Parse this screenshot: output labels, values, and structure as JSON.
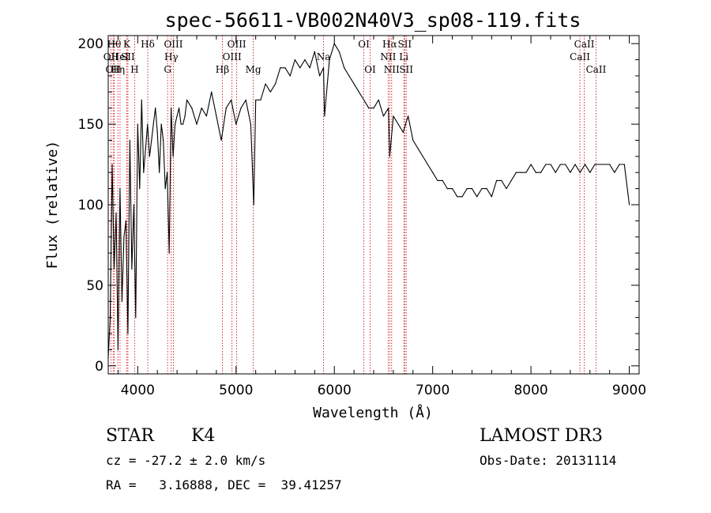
{
  "chart_data": {
    "type": "line",
    "title": "spec-56611-VB002N40V3_sp08-119.fits",
    "xlabel": "Wavelength (Å)",
    "ylabel": "Flux (relative)",
    "xlim": [
      3700,
      9100
    ],
    "ylim": [
      -5,
      205
    ],
    "xticks": [
      4000,
      5000,
      6000,
      7000,
      8000,
      9000
    ],
    "yticks": [
      0,
      50,
      100,
      150,
      200
    ],
    "series": [
      {
        "name": "flux",
        "x": [
          3700,
          3720,
          3740,
          3760,
          3780,
          3800,
          3820,
          3840,
          3860,
          3880,
          3900,
          3920,
          3940,
          3960,
          3980,
          4000,
          4020,
          4040,
          4060,
          4080,
          4100,
          4120,
          4140,
          4160,
          4180,
          4200,
          4220,
          4240,
          4260,
          4280,
          4300,
          4320,
          4340,
          4360,
          4380,
          4400,
          4420,
          4440,
          4460,
          4480,
          4500,
          4550,
          4600,
          4650,
          4700,
          4750,
          4800,
          4850,
          4900,
          4950,
          5000,
          5050,
          5100,
          5150,
          5180,
          5200,
          5250,
          5300,
          5350,
          5400,
          5450,
          5500,
          5550,
          5600,
          5650,
          5700,
          5750,
          5800,
          5850,
          5890,
          5900,
          5950,
          6000,
          6050,
          6100,
          6150,
          6200,
          6250,
          6300,
          6350,
          6400,
          6450,
          6500,
          6550,
          6563,
          6600,
          6650,
          6700,
          6750,
          6800,
          6850,
          6900,
          6950,
          7000,
          7050,
          7100,
          7150,
          7200,
          7250,
          7300,
          7350,
          7400,
          7450,
          7500,
          7550,
          7600,
          7650,
          7700,
          7750,
          7800,
          7850,
          7900,
          7950,
          8000,
          8050,
          8100,
          8150,
          8200,
          8250,
          8300,
          8350,
          8400,
          8450,
          8500,
          8550,
          8600,
          8650,
          8700,
          8750,
          8800,
          8850,
          8900,
          8950,
          9000
        ],
        "values": [
          5,
          30,
          125,
          60,
          95,
          10,
          110,
          40,
          80,
          90,
          20,
          140,
          60,
          100,
          30,
          150,
          110,
          165,
          120,
          135,
          150,
          130,
          140,
          150,
          160,
          145,
          120,
          150,
          140,
          110,
          120,
          70,
          160,
          130,
          150,
          155,
          160,
          150,
          150,
          155,
          165,
          160,
          150,
          160,
          155,
          170,
          155,
          140,
          160,
          165,
          150,
          160,
          165,
          150,
          100,
          165,
          165,
          175,
          170,
          175,
          185,
          185,
          180,
          190,
          185,
          190,
          185,
          195,
          180,
          185,
          155,
          190,
          200,
          195,
          185,
          180,
          175,
          170,
          165,
          160,
          160,
          165,
          155,
          160,
          130,
          155,
          150,
          145,
          155,
          140,
          135,
          130,
          125,
          120,
          115,
          115,
          110,
          110,
          105,
          105,
          110,
          110,
          105,
          110,
          110,
          105,
          115,
          115,
          110,
          115,
          120,
          120,
          120,
          125,
          120,
          120,
          125,
          125,
          120,
          125,
          125,
          120,
          125,
          120,
          125,
          120,
          125,
          125,
          125,
          125,
          120,
          125,
          125,
          100
        ]
      }
    ],
    "lines": [
      {
        "w": 3727,
        "label": "OII",
        "row": 1
      },
      {
        "w": 3750,
        "label": "OII",
        "row": 2
      },
      {
        "w": 3760,
        "label": "Hθ",
        "row": 0
      },
      {
        "w": 3798,
        "label": "Hη",
        "row": 2
      },
      {
        "w": 3820,
        "label": "HeI",
        "row": 1
      },
      {
        "w": 3889,
        "label": "K",
        "row": 0
      },
      {
        "w": 3900,
        "label": "SII",
        "row": 1
      },
      {
        "w": 3968,
        "label": "H",
        "row": 2
      },
      {
        "w": 4102,
        "label": "Hδ",
        "row": 0
      },
      {
        "w": 4304,
        "label": "G",
        "row": 2
      },
      {
        "w": 4341,
        "label": "Hγ",
        "row": 1
      },
      {
        "w": 4363,
        "label": "OIII",
        "row": 0
      },
      {
        "w": 4861,
        "label": "Hβ",
        "row": 2
      },
      {
        "w": 4959,
        "label": "OIII",
        "row": 1
      },
      {
        "w": 5007,
        "label": "OIII",
        "row": 0
      },
      {
        "w": 5175,
        "label": "Mg",
        "row": 2
      },
      {
        "w": 5890,
        "label": "Na",
        "row": 1
      },
      {
        "w": 6300,
        "label": "OI",
        "row": 0
      },
      {
        "w": 6364,
        "label": "OI",
        "row": 2
      },
      {
        "w": 6548,
        "label": "NII",
        "row": 1
      },
      {
        "w": 6563,
        "label": "Hα",
        "row": 0
      },
      {
        "w": 6583,
        "label": "NII",
        "row": 2
      },
      {
        "w": 6707,
        "label": "Li",
        "row": 1
      },
      {
        "w": 6716,
        "label": "SII",
        "row": 0
      },
      {
        "w": 6731,
        "label": "SII",
        "row": 2
      },
      {
        "w": 8498,
        "label": "CaII",
        "row": 1
      },
      {
        "w": 8542,
        "label": "CaII",
        "row": 0
      },
      {
        "w": 8662,
        "label": "CaII",
        "row": 2
      }
    ]
  },
  "info": {
    "class": "STAR",
    "subclass": "K4",
    "survey": "LAMOST DR3",
    "cz": "cz = -27.2 ± 2.0 km/s",
    "obsdate": "Obs-Date: 20131114",
    "radec": "RA =   3.16888, DEC =  39.41257"
  },
  "colors": {
    "axis": "#000000",
    "spectrum": "#000000",
    "lines": "#cc0000"
  }
}
